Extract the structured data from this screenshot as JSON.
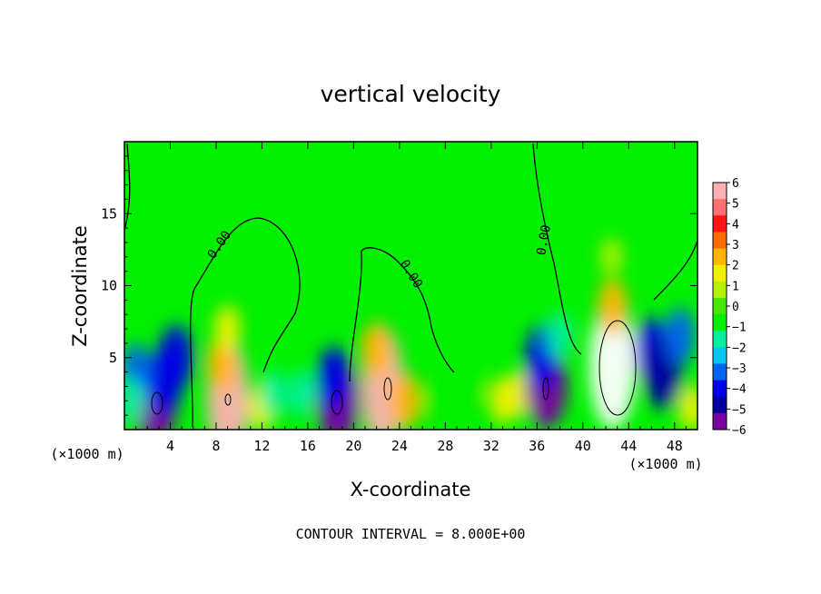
{
  "chart_data": {
    "type": "heatmap",
    "title": "vertical velocity",
    "xlabel": "X-coordinate",
    "ylabel": "Z-coordinate",
    "x_unit_label": "(×1000 m)",
    "xlim": [
      0,
      50
    ],
    "ylim": [
      0,
      20
    ],
    "xticks": [
      "4",
      "8",
      "12",
      "16",
      "20",
      "24",
      "28",
      "32",
      "36",
      "40",
      "44",
      "48"
    ],
    "yticks": [
      "5",
      "10",
      "15"
    ],
    "colorbar": {
      "min": -6,
      "max": 6,
      "labels": [
        "6",
        "5",
        "4",
        "3",
        "2",
        "1",
        "0",
        "−1",
        "−2",
        "−3",
        "−4",
        "−5",
        "−6"
      ],
      "colors": [
        "#ffb0b0",
        "#ff7070",
        "#ff1414",
        "#ff6a00",
        "#ffb400",
        "#f0f000",
        "#b4f000",
        "#46e600",
        "#00f000",
        "#00f0a0",
        "#00c8f0",
        "#0064f0",
        "#0000e6",
        "#0000a0",
        "#7800a0"
      ]
    },
    "contour_label": "0.00",
    "contour_interval_text": "CONTOUR INTERVAL = 8.000E+00",
    "features": [
      {
        "x": 2.7,
        "z": 1.8,
        "w": -6
      },
      {
        "x": 3.5,
        "z": 3.4,
        "w": -4.5
      },
      {
        "x": 4.5,
        "z": 5.0,
        "w": -4
      },
      {
        "x": 1.0,
        "z": 4.0,
        "w": -3
      },
      {
        "x": 0.6,
        "z": 2.0,
        "w": -2
      },
      {
        "x": 9.0,
        "z": 2.2,
        "w": 6
      },
      {
        "x": 8.5,
        "z": 4.5,
        "w": 3
      },
      {
        "x": 9.0,
        "z": 7.0,
        "w": 2
      },
      {
        "x": 12.0,
        "z": 1.5,
        "w": 2
      },
      {
        "x": 13.0,
        "z": 2.5,
        "w": -2
      },
      {
        "x": 15.5,
        "z": 2.5,
        "w": -2
      },
      {
        "x": 18.6,
        "z": 1.9,
        "w": -6
      },
      {
        "x": 18.3,
        "z": 3.5,
        "w": -4
      },
      {
        "x": 22.5,
        "z": 3.0,
        "w": 6
      },
      {
        "x": 22.0,
        "z": 5.5,
        "w": 3
      },
      {
        "x": 24.5,
        "z": 2.0,
        "w": 3
      },
      {
        "x": 27.0,
        "z": 2.0,
        "w": -1
      },
      {
        "x": 30.5,
        "z": 3.0,
        "w": -1
      },
      {
        "x": 33.0,
        "z": 2.0,
        "w": 2
      },
      {
        "x": 34.5,
        "z": 2.5,
        "w": 2
      },
      {
        "x": 36.8,
        "z": 3.0,
        "w": -6
      },
      {
        "x": 36.5,
        "z": 5.0,
        "w": -4
      },
      {
        "x": 38.0,
        "z": 6.5,
        "w": -2
      },
      {
        "x": 42.6,
        "z": 4.5,
        "w": 7
      },
      {
        "x": 42.6,
        "z": 8.5,
        "w": 3
      },
      {
        "x": 42.5,
        "z": 12.0,
        "w": 1
      },
      {
        "x": 46.0,
        "z": 5.5,
        "w": -4
      },
      {
        "x": 47.0,
        "z": 4.0,
        "w": -5
      },
      {
        "x": 48.5,
        "z": 6.5,
        "w": -3
      },
      {
        "x": 49.5,
        "z": 1.5,
        "w": 2
      }
    ]
  }
}
